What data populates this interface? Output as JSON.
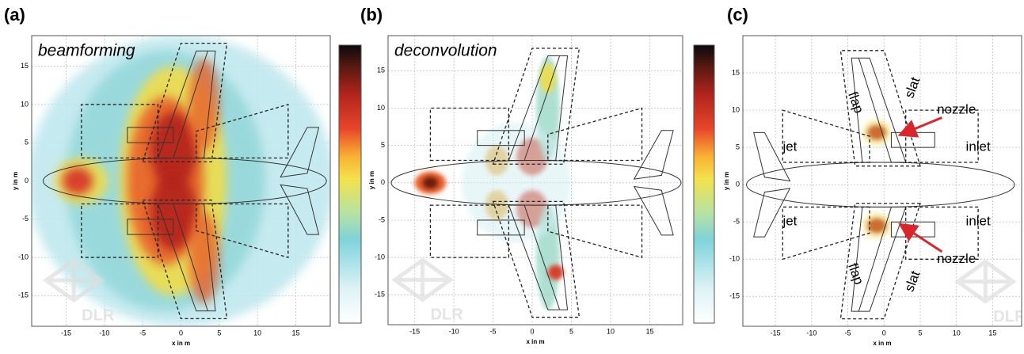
{
  "panels": [
    {
      "label": "(a)",
      "title": "beamforming",
      "watermark": "DLR",
      "xlabel": "x in m",
      "ylabel": "y in m",
      "xlim": [
        -19.5,
        19.5
      ],
      "ylim": [
        -19,
        19
      ],
      "xticks": [
        -15,
        -10,
        -5,
        0,
        5,
        10,
        15
      ],
      "yticks": [
        -15,
        -10,
        -5,
        0,
        5,
        10,
        15
      ]
    },
    {
      "label": "(b)",
      "title": "deconvolution",
      "watermark": "DLR",
      "xlabel": "x in m",
      "ylabel": "y in m",
      "xlim": [
        -18.4,
        19.2
      ],
      "ylim": [
        -19,
        19.7
      ],
      "xticks": [
        -15,
        -10,
        -5,
        0,
        5,
        10,
        15
      ],
      "yticks": [
        -15,
        -10,
        -5,
        0,
        5,
        10,
        15
      ]
    },
    {
      "label": "(c)",
      "watermark": "DLR",
      "xlabel": "x in m",
      "ylabel": "y in m",
      "xlim": [
        -19.5,
        19
      ],
      "ylim": [
        -19,
        20
      ],
      "xticks": [
        -15,
        -10,
        -5,
        0,
        5,
        10,
        15
      ],
      "yticks": [
        -15,
        -10,
        -5,
        0,
        5,
        10,
        15
      ],
      "annotations": [
        "slat",
        "flap",
        "nozzle",
        "jet",
        "inlet",
        "jet",
        "inlet",
        "nozzle",
        "flap",
        "slat"
      ]
    }
  ]
}
